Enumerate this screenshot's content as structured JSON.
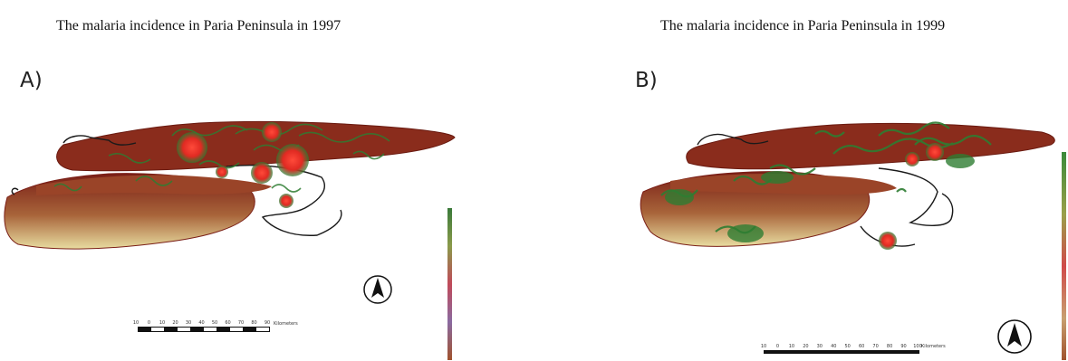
{
  "panels": [
    {
      "id": "A",
      "title": "The malaria incidence in Paria Peninsula in 1997",
      "label": "A)",
      "scale_ticks": [
        "10",
        "0",
        "10",
        "20",
        "30",
        "40",
        "50",
        "60",
        "70",
        "80",
        "90"
      ],
      "scale_unit": "Kilometers",
      "north_arrow": "north-arrow-icon"
    },
    {
      "id": "B",
      "title": "The malaria incidence in Paria Peninsula in 1999",
      "label": "B)",
      "scale_ticks": [
        "10",
        "0",
        "10",
        "20",
        "30",
        "40",
        "50",
        "60",
        "70",
        "80",
        "90",
        "100"
      ],
      "scale_unit": "Kilometers",
      "north_arrow": "north-arrow-icon"
    }
  ],
  "colors": {
    "terrain_dark": "#7a1e16",
    "terrain_mid": "#a8643a",
    "terrain_light": "#e8e0a8",
    "contour_green": "#2e7d32",
    "hotspot_red": "#e53030",
    "coastline": "#1a1a1a"
  }
}
